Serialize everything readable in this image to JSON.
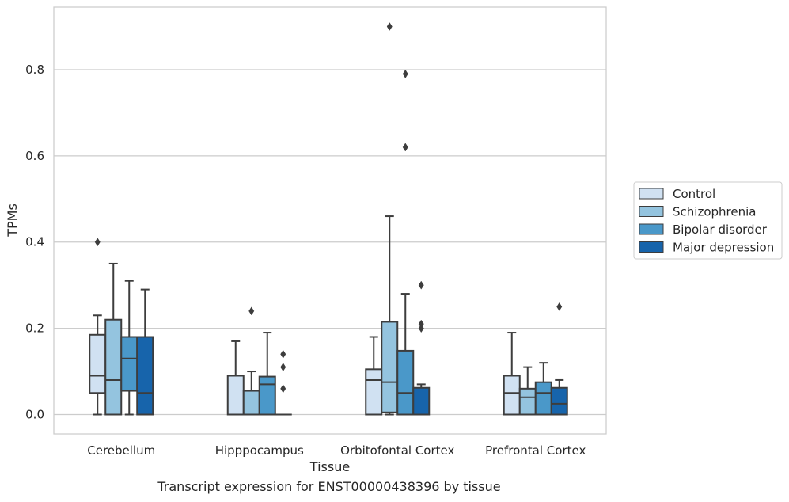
{
  "caption": "Transcript expression for ENST00000438396 by tissue",
  "chart_data": {
    "type": "box",
    "xlabel": "Tissue",
    "ylabel": "TPMs",
    "ylim": [
      -0.045,
      0.945
    ],
    "yticks": [
      0.0,
      0.2,
      0.4,
      0.6,
      0.8
    ],
    "ytick_labels": [
      "0.0",
      "0.2",
      "0.4",
      "0.6",
      "0.8"
    ],
    "grid": "horizontal",
    "legend_position": "right",
    "categories": [
      "Cerebellum",
      "Hipppocampus",
      "Orbitofontal Cortex",
      "Prefrontal Cortex"
    ],
    "series": [
      {
        "name": "Control",
        "color": "#d0e1f2",
        "boxes": [
          {
            "whislo": 0.0,
            "q1": 0.05,
            "med": 0.09,
            "q3": 0.185,
            "whishi": 0.23,
            "fliers": [
              0.4
            ]
          },
          {
            "whislo": 0.0,
            "q1": 0.0,
            "med": 0.0,
            "q3": 0.09,
            "whishi": 0.17,
            "fliers": []
          },
          {
            "whislo": 0.0,
            "q1": 0.0,
            "med": 0.08,
            "q3": 0.105,
            "whishi": 0.18,
            "fliers": []
          },
          {
            "whislo": 0.0,
            "q1": 0.0,
            "med": 0.05,
            "q3": 0.09,
            "whishi": 0.19,
            "fliers": []
          }
        ]
      },
      {
        "name": "Schizophrenia",
        "color": "#94c4df",
        "boxes": [
          {
            "whislo": 0.0,
            "q1": 0.0,
            "med": 0.08,
            "q3": 0.22,
            "whishi": 0.35,
            "fliers": []
          },
          {
            "whislo": 0.0,
            "q1": 0.0,
            "med": 0.055,
            "q3": 0.055,
            "whishi": 0.1,
            "fliers": [
              0.24
            ]
          },
          {
            "whislo": 0.0,
            "q1": 0.005,
            "med": 0.075,
            "q3": 0.215,
            "whishi": 0.46,
            "fliers": [
              0.9
            ]
          },
          {
            "whislo": 0.0,
            "q1": 0.0,
            "med": 0.04,
            "q3": 0.06,
            "whishi": 0.11,
            "fliers": []
          }
        ]
      },
      {
        "name": "Bipolar disorder",
        "color": "#4a98c9",
        "boxes": [
          {
            "whislo": 0.0,
            "q1": 0.055,
            "med": 0.13,
            "q3": 0.18,
            "whishi": 0.31,
            "fliers": []
          },
          {
            "whislo": 0.0,
            "q1": 0.0,
            "med": 0.07,
            "q3": 0.088,
            "whishi": 0.19,
            "fliers": []
          },
          {
            "whislo": 0.0,
            "q1": 0.0,
            "med": 0.05,
            "q3": 0.148,
            "whishi": 0.28,
            "fliers": [
              0.79,
              0.62
            ]
          },
          {
            "whislo": 0.0,
            "q1": 0.0,
            "med": 0.05,
            "q3": 0.075,
            "whishi": 0.12,
            "fliers": []
          }
        ]
      },
      {
        "name": "Major depression",
        "color": "#1764ab",
        "boxes": [
          {
            "whislo": 0.0,
            "q1": 0.0,
            "med": 0.05,
            "q3": 0.18,
            "whishi": 0.29,
            "fliers": []
          },
          {
            "whislo": 0.0,
            "q1": 0.0,
            "med": 0.0,
            "q3": 0.0,
            "whishi": 0.0,
            "fliers": [
              0.14,
              0.11,
              0.06
            ]
          },
          {
            "whislo": 0.0,
            "q1": 0.0,
            "med": 0.0,
            "q3": 0.062,
            "whishi": 0.07,
            "fliers": [
              0.3,
              0.21,
              0.2
            ]
          },
          {
            "whislo": 0.0,
            "q1": 0.0,
            "med": 0.025,
            "q3": 0.062,
            "whishi": 0.08,
            "fliers": [
              0.25
            ]
          }
        ]
      }
    ]
  }
}
